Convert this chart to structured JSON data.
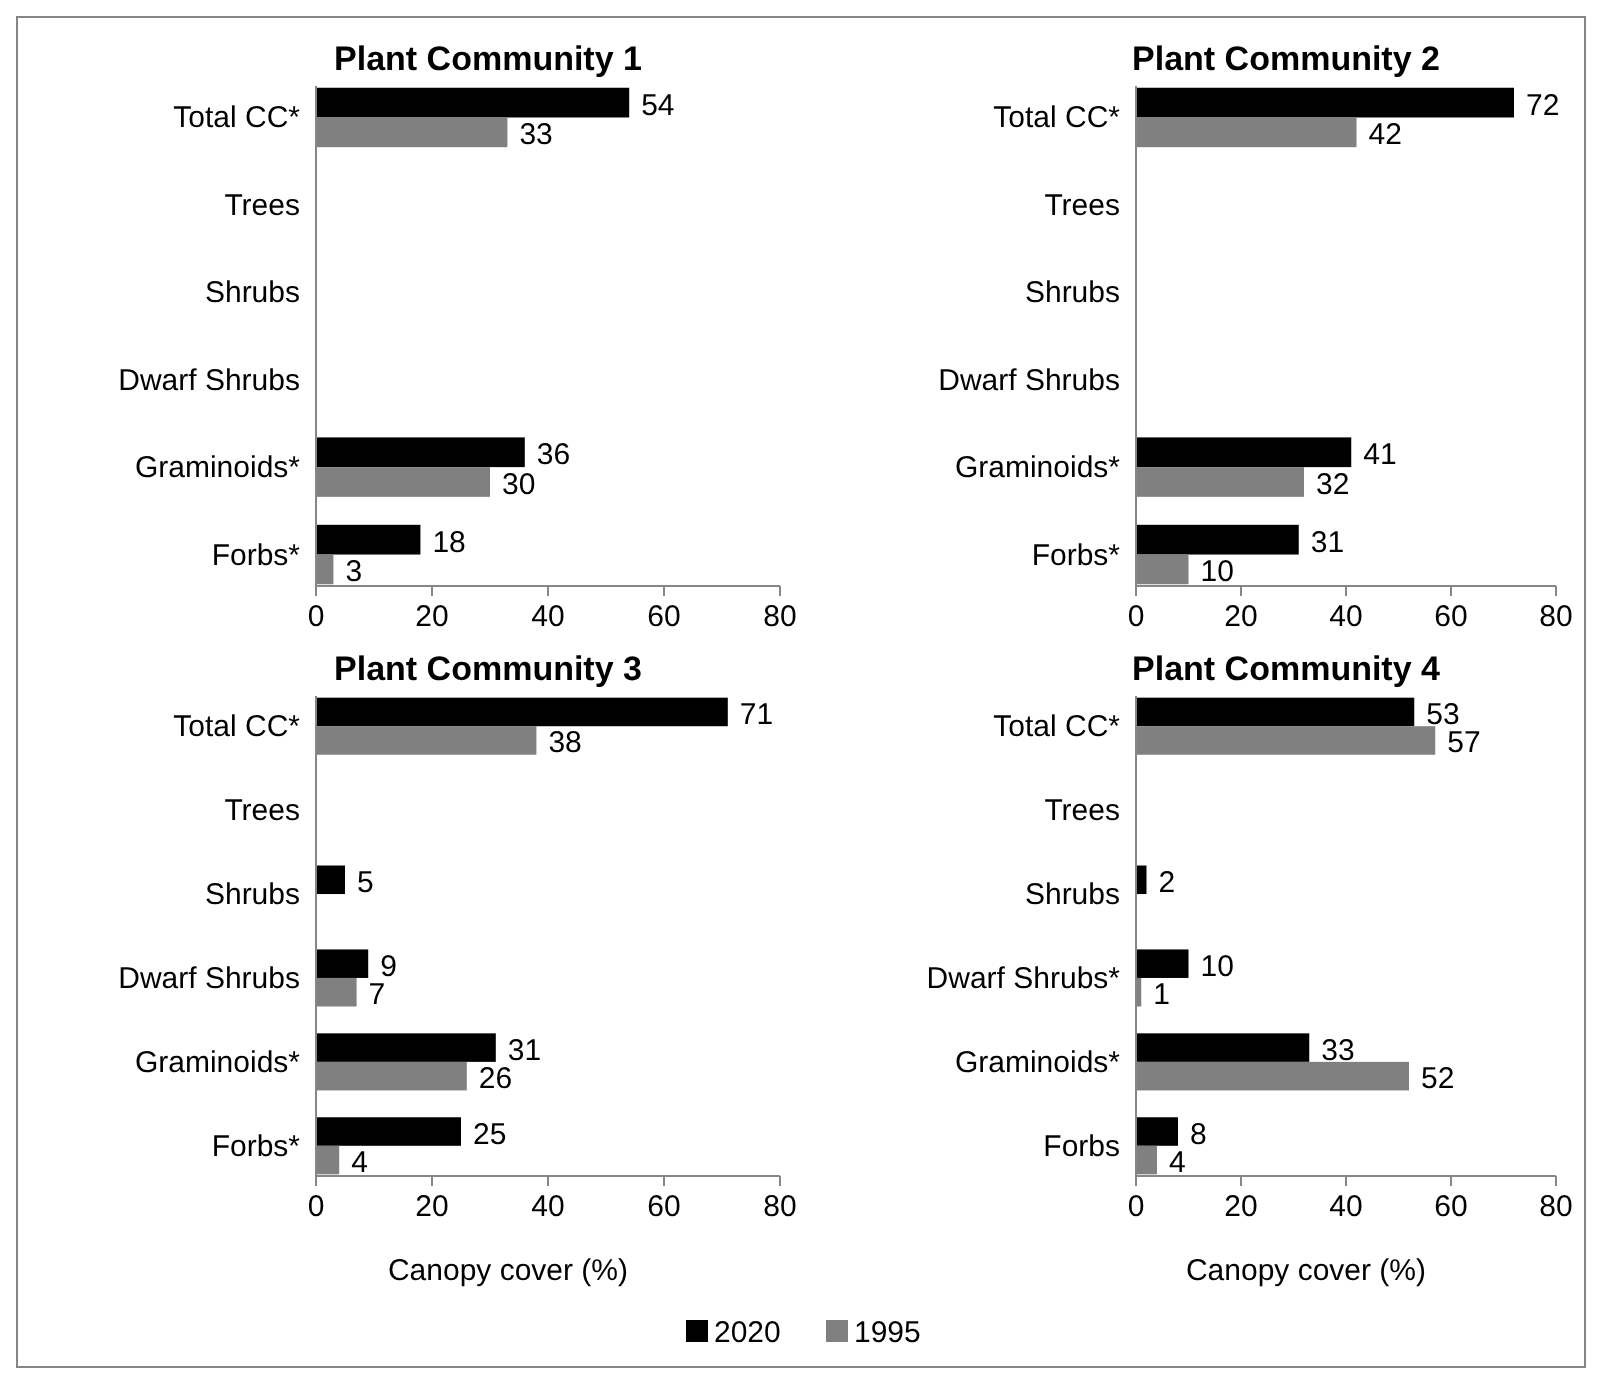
{
  "chart_data": [
    {
      "type": "bar",
      "orientation": "horizontal",
      "title": "Plant Community 1",
      "categories": [
        "Total CC*",
        "Trees",
        "Shrubs",
        "Dwarf Shrubs",
        "Graminoids*",
        "Forbs*"
      ],
      "series": [
        {
          "name": "2020",
          "color": "#000000",
          "values": [
            54,
            null,
            null,
            null,
            36,
            18
          ]
        },
        {
          "name": "1995",
          "color": "#808080",
          "values": [
            33,
            null,
            null,
            null,
            30,
            3
          ]
        }
      ],
      "xlim": [
        0,
        80
      ],
      "xticks": [
        0,
        20,
        40,
        60,
        80
      ],
      "data_labels": true,
      "legend": "bottom"
    },
    {
      "type": "bar",
      "orientation": "horizontal",
      "title": "Plant Community 2",
      "categories": [
        "Total CC*",
        "Trees",
        "Shrubs",
        "Dwarf Shrubs",
        "Graminoids*",
        "Forbs*"
      ],
      "series": [
        {
          "color": "#000000",
          "values": [
            72,
            null,
            null,
            null,
            41,
            31
          ]
        },
        {
          "color": "#808080",
          "values": [
            42,
            null,
            null,
            null,
            32,
            10
          ]
        }
      ],
      "xlim": [
        0,
        80
      ],
      "xticks": [
        0,
        20,
        40,
        60,
        80
      ],
      "data_labels": true
    },
    {
      "type": "bar",
      "orientation": "horizontal",
      "title": "Plant Community 3",
      "xlabel": "Canopy cover (%)",
      "categories": [
        "Total CC*",
        "Trees",
        "Shrubs",
        "Dwarf Shrubs",
        "Graminoids*",
        "Forbs*"
      ],
      "series": [
        {
          "color": "#000000",
          "values": [
            71,
            null,
            5,
            9,
            31,
            25
          ]
        },
        {
          "color": "#808080",
          "values": [
            38,
            null,
            null,
            7,
            26,
            4
          ]
        }
      ],
      "xlim": [
        0,
        80
      ],
      "xticks": [
        0,
        20,
        40,
        60,
        80
      ],
      "data_labels": true
    },
    {
      "type": "bar",
      "orientation": "horizontal",
      "title": "Plant Community 4",
      "xlabel": "Canopy cover (%)",
      "categories": [
        "Total CC*",
        "Trees",
        "Shrubs",
        "Dwarf Shrubs*",
        "Graminoids*",
        "Forbs"
      ],
      "series": [
        {
          "color": "#000000",
          "values": [
            53,
            null,
            2,
            10,
            33,
            8
          ]
        },
        {
          "color": "#808080",
          "values": [
            57,
            null,
            null,
            1,
            52,
            4
          ]
        }
      ],
      "xlim": [
        0,
        80
      ],
      "xticks": [
        0,
        20,
        40,
        60,
        80
      ],
      "data_labels": true
    }
  ]
}
